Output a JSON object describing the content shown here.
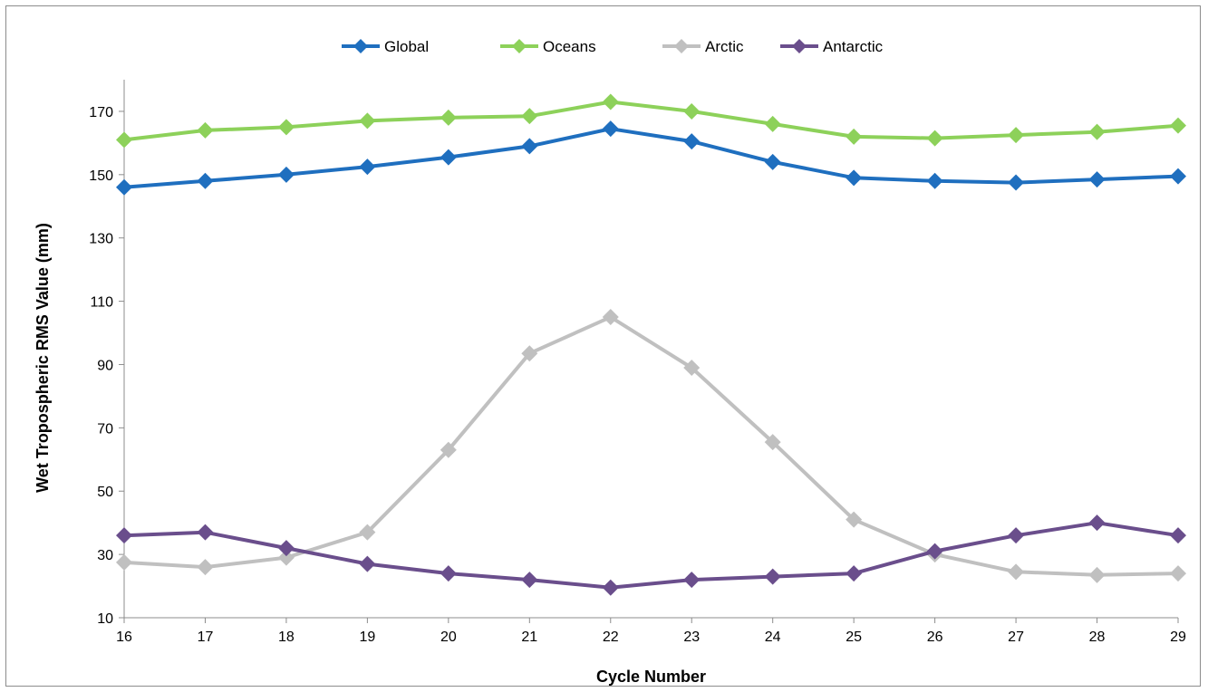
{
  "chart_data": {
    "type": "line",
    "title": "",
    "xlabel": "Cycle Number",
    "ylabel": "Wet Tropospheric RMS Value (mm)",
    "x": [
      16,
      17,
      18,
      19,
      20,
      21,
      22,
      23,
      24,
      25,
      26,
      27,
      28,
      29
    ],
    "xlim": [
      16,
      29
    ],
    "ylim": [
      10,
      180
    ],
    "yticks": [
      10,
      30,
      50,
      70,
      90,
      110,
      130,
      150,
      170
    ],
    "grid": false,
    "legend_position": "top",
    "series": [
      {
        "name": "Global",
        "color": "#1F6FBF",
        "marker": "diamond",
        "values": [
          146,
          148,
          150,
          152.5,
          155.5,
          159,
          164.5,
          160.5,
          154,
          149,
          148,
          147.5,
          148.5,
          149.5
        ]
      },
      {
        "name": "Oceans",
        "color": "#8DD15A",
        "marker": "diamond",
        "values": [
          161,
          164,
          165,
          167,
          168,
          168.5,
          173,
          170,
          166,
          162,
          161.5,
          162.5,
          163.5,
          165.5
        ]
      },
      {
        "name": "Arctic",
        "color": "#C0C0C0",
        "marker": "diamond",
        "values": [
          27.5,
          26,
          29,
          37,
          63,
          93.5,
          105,
          89,
          65.5,
          41,
          30,
          24.5,
          23.5,
          24
        ]
      },
      {
        "name": "Antarctic",
        "color": "#6A4E8C",
        "marker": "diamond",
        "values": [
          36,
          37,
          32,
          27,
          24,
          22,
          19.5,
          22,
          23,
          24,
          31,
          36,
          40,
          36
        ]
      }
    ]
  }
}
